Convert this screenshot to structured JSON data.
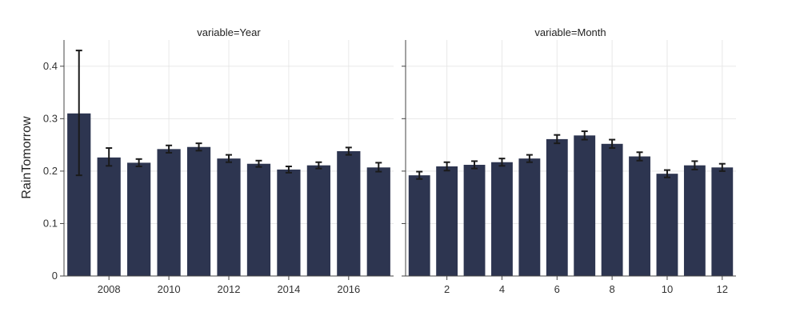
{
  "colors": {
    "bar": "#2d3550",
    "error": "#1a1a1a",
    "grid": "#e8e8e8",
    "axis": "#444444"
  },
  "chart_data": [
    {
      "type": "bar",
      "title": "variable=Year",
      "xlabel": "",
      "ylabel": "RainTomorrow",
      "ylim": [
        0,
        0.45
      ],
      "yticks": [
        0,
        0.1,
        0.2,
        0.3,
        0.4
      ],
      "yticklabels": [
        "0",
        "0.1",
        "0.2",
        "0.3",
        "0.4"
      ],
      "x": [
        2007,
        2008,
        2009,
        2010,
        2011,
        2012,
        2013,
        2014,
        2015,
        2016,
        2017
      ],
      "values": [
        0.31,
        0.226,
        0.216,
        0.242,
        0.246,
        0.224,
        0.214,
        0.203,
        0.211,
        0.238,
        0.207
      ],
      "error_low": [
        0.192,
        0.21,
        0.209,
        0.235,
        0.239,
        0.217,
        0.208,
        0.197,
        0.205,
        0.231,
        0.199
      ],
      "error_high": [
        0.43,
        0.244,
        0.223,
        0.249,
        0.253,
        0.231,
        0.22,
        0.209,
        0.217,
        0.245,
        0.216
      ],
      "xticks": [
        2008,
        2010,
        2012,
        2014,
        2016
      ],
      "xticklabels": [
        "2008",
        "2010",
        "2012",
        "2014",
        "2016"
      ],
      "grid": true
    },
    {
      "type": "bar",
      "title": "variable=Month",
      "xlabel": "",
      "ylabel": "",
      "ylim": [
        0,
        0.45
      ],
      "x": [
        1,
        2,
        3,
        4,
        5,
        6,
        7,
        8,
        9,
        10,
        11,
        12
      ],
      "values": [
        0.192,
        0.209,
        0.212,
        0.217,
        0.224,
        0.261,
        0.268,
        0.252,
        0.228,
        0.195,
        0.211,
        0.207
      ],
      "error_low": [
        0.185,
        0.201,
        0.205,
        0.21,
        0.217,
        0.253,
        0.26,
        0.244,
        0.22,
        0.188,
        0.203,
        0.2
      ],
      "error_high": [
        0.199,
        0.217,
        0.219,
        0.224,
        0.231,
        0.269,
        0.276,
        0.26,
        0.236,
        0.202,
        0.219,
        0.214
      ],
      "xticks": [
        2,
        4,
        6,
        8,
        10,
        12
      ],
      "xticklabels": [
        "2",
        "4",
        "6",
        "8",
        "10",
        "12"
      ],
      "grid": true
    }
  ]
}
